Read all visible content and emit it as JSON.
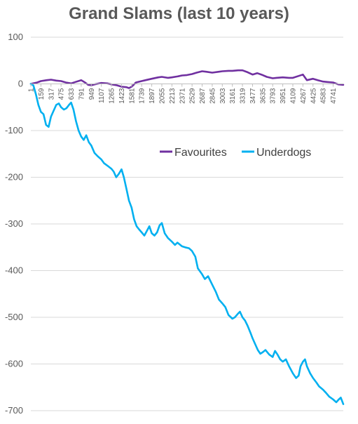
{
  "chart_data": {
    "type": "line",
    "title": "Grand Slams (last 10 years)",
    "xlabel": "",
    "ylabel": "",
    "ylim": [
      -700,
      100
    ],
    "yticks": [
      100,
      0,
      -100,
      -200,
      -300,
      -400,
      -500,
      -600,
      -700
    ],
    "xlim": [
      1,
      4900
    ],
    "xtick_labels": [
      "1",
      "159",
      "317",
      "475",
      "633",
      "791",
      "949",
      "1107",
      "1265",
      "1423",
      "1581",
      "1739",
      "1897",
      "2055",
      "2213",
      "2371",
      "2529",
      "2687",
      "2845",
      "3003",
      "3161",
      "3319",
      "3477",
      "3635",
      "3793",
      "3951",
      "4109",
      "4267",
      "4425",
      "4583",
      "4741"
    ],
    "grid": "horizontal",
    "legend": "inside-right",
    "series": [
      {
        "name": "Favourites",
        "color": "#7030A0",
        "points": [
          [
            1,
            0
          ],
          [
            100,
            3
          ],
          [
            159,
            6
          ],
          [
            250,
            8
          ],
          [
            317,
            9
          ],
          [
            400,
            7
          ],
          [
            475,
            6
          ],
          [
            550,
            3
          ],
          [
            633,
            1
          ],
          [
            700,
            4
          ],
          [
            791,
            8
          ],
          [
            850,
            3
          ],
          [
            900,
            -2
          ],
          [
            949,
            -3
          ],
          [
            1000,
            -1
          ],
          [
            1107,
            2
          ],
          [
            1200,
            1
          ],
          [
            1265,
            -1
          ],
          [
            1350,
            -3
          ],
          [
            1423,
            -6
          ],
          [
            1500,
            -7
          ],
          [
            1540,
            -9
          ],
          [
            1581,
            -6
          ],
          [
            1650,
            3
          ],
          [
            1739,
            6
          ],
          [
            1800,
            8
          ],
          [
            1897,
            11
          ],
          [
            2000,
            14
          ],
          [
            2055,
            15
          ],
          [
            2150,
            13
          ],
          [
            2213,
            14
          ],
          [
            2300,
            16
          ],
          [
            2371,
            18
          ],
          [
            2450,
            19
          ],
          [
            2529,
            21
          ],
          [
            2600,
            24
          ],
          [
            2687,
            27
          ],
          [
            2750,
            26
          ],
          [
            2845,
            24
          ],
          [
            2950,
            26
          ],
          [
            3003,
            27
          ],
          [
            3100,
            28
          ],
          [
            3161,
            28
          ],
          [
            3250,
            29
          ],
          [
            3319,
            29
          ],
          [
            3400,
            25
          ],
          [
            3477,
            20
          ],
          [
            3550,
            23
          ],
          [
            3635,
            19
          ],
          [
            3700,
            15
          ],
          [
            3793,
            12
          ],
          [
            3850,
            13
          ],
          [
            3951,
            14
          ],
          [
            4050,
            13
          ],
          [
            4109,
            13
          ],
          [
            4200,
            17
          ],
          [
            4267,
            20
          ],
          [
            4330,
            8
          ],
          [
            4425,
            11
          ],
          [
            4500,
            8
          ],
          [
            4583,
            5
          ],
          [
            4650,
            4
          ],
          [
            4741,
            3
          ],
          [
            4820,
            -1
          ],
          [
            4900,
            -2
          ]
        ]
      },
      {
        "name": "Underdogs",
        "color": "#00B0F0",
        "points": [
          [
            1,
            0
          ],
          [
            40,
            -3
          ],
          [
            80,
            -22
          ],
          [
            120,
            -45
          ],
          [
            159,
            -60
          ],
          [
            200,
            -65
          ],
          [
            240,
            -88
          ],
          [
            280,
            -92
          ],
          [
            317,
            -70
          ],
          [
            350,
            -60
          ],
          [
            400,
            -45
          ],
          [
            440,
            -42
          ],
          [
            475,
            -50
          ],
          [
            520,
            -55
          ],
          [
            560,
            -52
          ],
          [
            600,
            -45
          ],
          [
            633,
            -40
          ],
          [
            670,
            -55
          ],
          [
            710,
            -80
          ],
          [
            750,
            -100
          ],
          [
            791,
            -113
          ],
          [
            830,
            -120
          ],
          [
            870,
            -110
          ],
          [
            910,
            -125
          ],
          [
            949,
            -132
          ],
          [
            1000,
            -148
          ],
          [
            1050,
            -155
          ],
          [
            1107,
            -162
          ],
          [
            1150,
            -170
          ],
          [
            1200,
            -175
          ],
          [
            1265,
            -182
          ],
          [
            1300,
            -188
          ],
          [
            1340,
            -200
          ],
          [
            1380,
            -193
          ],
          [
            1423,
            -183
          ],
          [
            1460,
            -200
          ],
          [
            1500,
            -225
          ],
          [
            1540,
            -250
          ],
          [
            1581,
            -265
          ],
          [
            1620,
            -290
          ],
          [
            1660,
            -305
          ],
          [
            1700,
            -312
          ],
          [
            1739,
            -318
          ],
          [
            1780,
            -325
          ],
          [
            1820,
            -315
          ],
          [
            1860,
            -305
          ],
          [
            1897,
            -320
          ],
          [
            1940,
            -325
          ],
          [
            1980,
            -318
          ],
          [
            2020,
            -303
          ],
          [
            2055,
            -298
          ],
          [
            2100,
            -320
          ],
          [
            2150,
            -330
          ],
          [
            2213,
            -338
          ],
          [
            2260,
            -345
          ],
          [
            2300,
            -340
          ],
          [
            2371,
            -348
          ],
          [
            2420,
            -350
          ],
          [
            2480,
            -352
          ],
          [
            2529,
            -358
          ],
          [
            2580,
            -370
          ],
          [
            2620,
            -395
          ],
          [
            2687,
            -408
          ],
          [
            2730,
            -418
          ],
          [
            2780,
            -412
          ],
          [
            2845,
            -430
          ],
          [
            2900,
            -445
          ],
          [
            2950,
            -462
          ],
          [
            3003,
            -470
          ],
          [
            3050,
            -478
          ],
          [
            3100,
            -495
          ],
          [
            3161,
            -503
          ],
          [
            3200,
            -500
          ],
          [
            3250,
            -492
          ],
          [
            3280,
            -488
          ],
          [
            3319,
            -500
          ],
          [
            3360,
            -507
          ],
          [
            3400,
            -518
          ],
          [
            3450,
            -535
          ],
          [
            3477,
            -545
          ],
          [
            3520,
            -558
          ],
          [
            3560,
            -570
          ],
          [
            3600,
            -578
          ],
          [
            3635,
            -575
          ],
          [
            3680,
            -570
          ],
          [
            3740,
            -580
          ],
          [
            3793,
            -585
          ],
          [
            3830,
            -572
          ],
          [
            3870,
            -580
          ],
          [
            3910,
            -590
          ],
          [
            3951,
            -595
          ],
          [
            4000,
            -590
          ],
          [
            4050,
            -605
          ],
          [
            4109,
            -620
          ],
          [
            4160,
            -630
          ],
          [
            4200,
            -625
          ],
          [
            4230,
            -605
          ],
          [
            4267,
            -595
          ],
          [
            4300,
            -590
          ],
          [
            4330,
            -605
          ],
          [
            4380,
            -620
          ],
          [
            4425,
            -630
          ],
          [
            4480,
            -640
          ],
          [
            4520,
            -648
          ],
          [
            4583,
            -655
          ],
          [
            4630,
            -662
          ],
          [
            4680,
            -670
          ],
          [
            4741,
            -676
          ],
          [
            4790,
            -682
          ],
          [
            4830,
            -676
          ],
          [
            4860,
            -672
          ],
          [
            4900,
            -686
          ]
        ]
      }
    ]
  }
}
